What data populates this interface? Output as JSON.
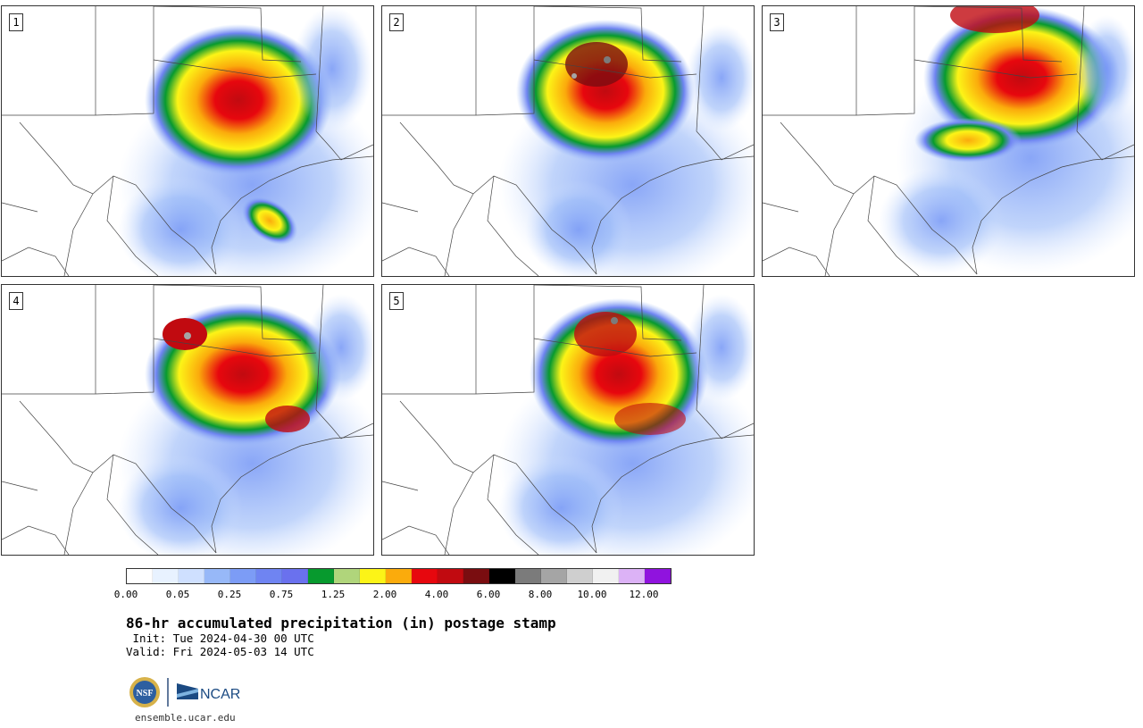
{
  "panels": [
    {
      "number": "1"
    },
    {
      "number": "2"
    },
    {
      "number": "3"
    },
    {
      "number": "4"
    },
    {
      "number": "5"
    }
  ],
  "colorbar": {
    "colors": [
      "#ffffff",
      "#e8f2ff",
      "#cfe0ff",
      "#97b8f8",
      "#7c9cf6",
      "#6f84f2",
      "#6a71ee",
      "#079a2e",
      "#b0d57b",
      "#fcf417",
      "#fbab0c",
      "#e7070e",
      "#c10a10",
      "#7a0d10",
      "#000000",
      "#7b7b7b",
      "#a5a5a5",
      "#cfcfcf",
      "#f1f1f1",
      "#dcb2f6",
      "#9013de"
    ],
    "tick_labels": [
      "0.00",
      "0.05",
      "0.25",
      "0.75",
      "1.25",
      "2.00",
      "4.00",
      "6.00",
      "8.00",
      "10.00",
      "12.00"
    ]
  },
  "title": "86-hr accumulated precipitation (in) postage stamp",
  "init_text": " Init: Tue 2024-04-30 00 UTC",
  "valid_text": "Valid: Fri 2024-05-03 14 UTC",
  "logos": {
    "nsf_icon": "NSF",
    "ncar_icon": "NCAR"
  },
  "url": "ensemble.ucar.edu"
}
